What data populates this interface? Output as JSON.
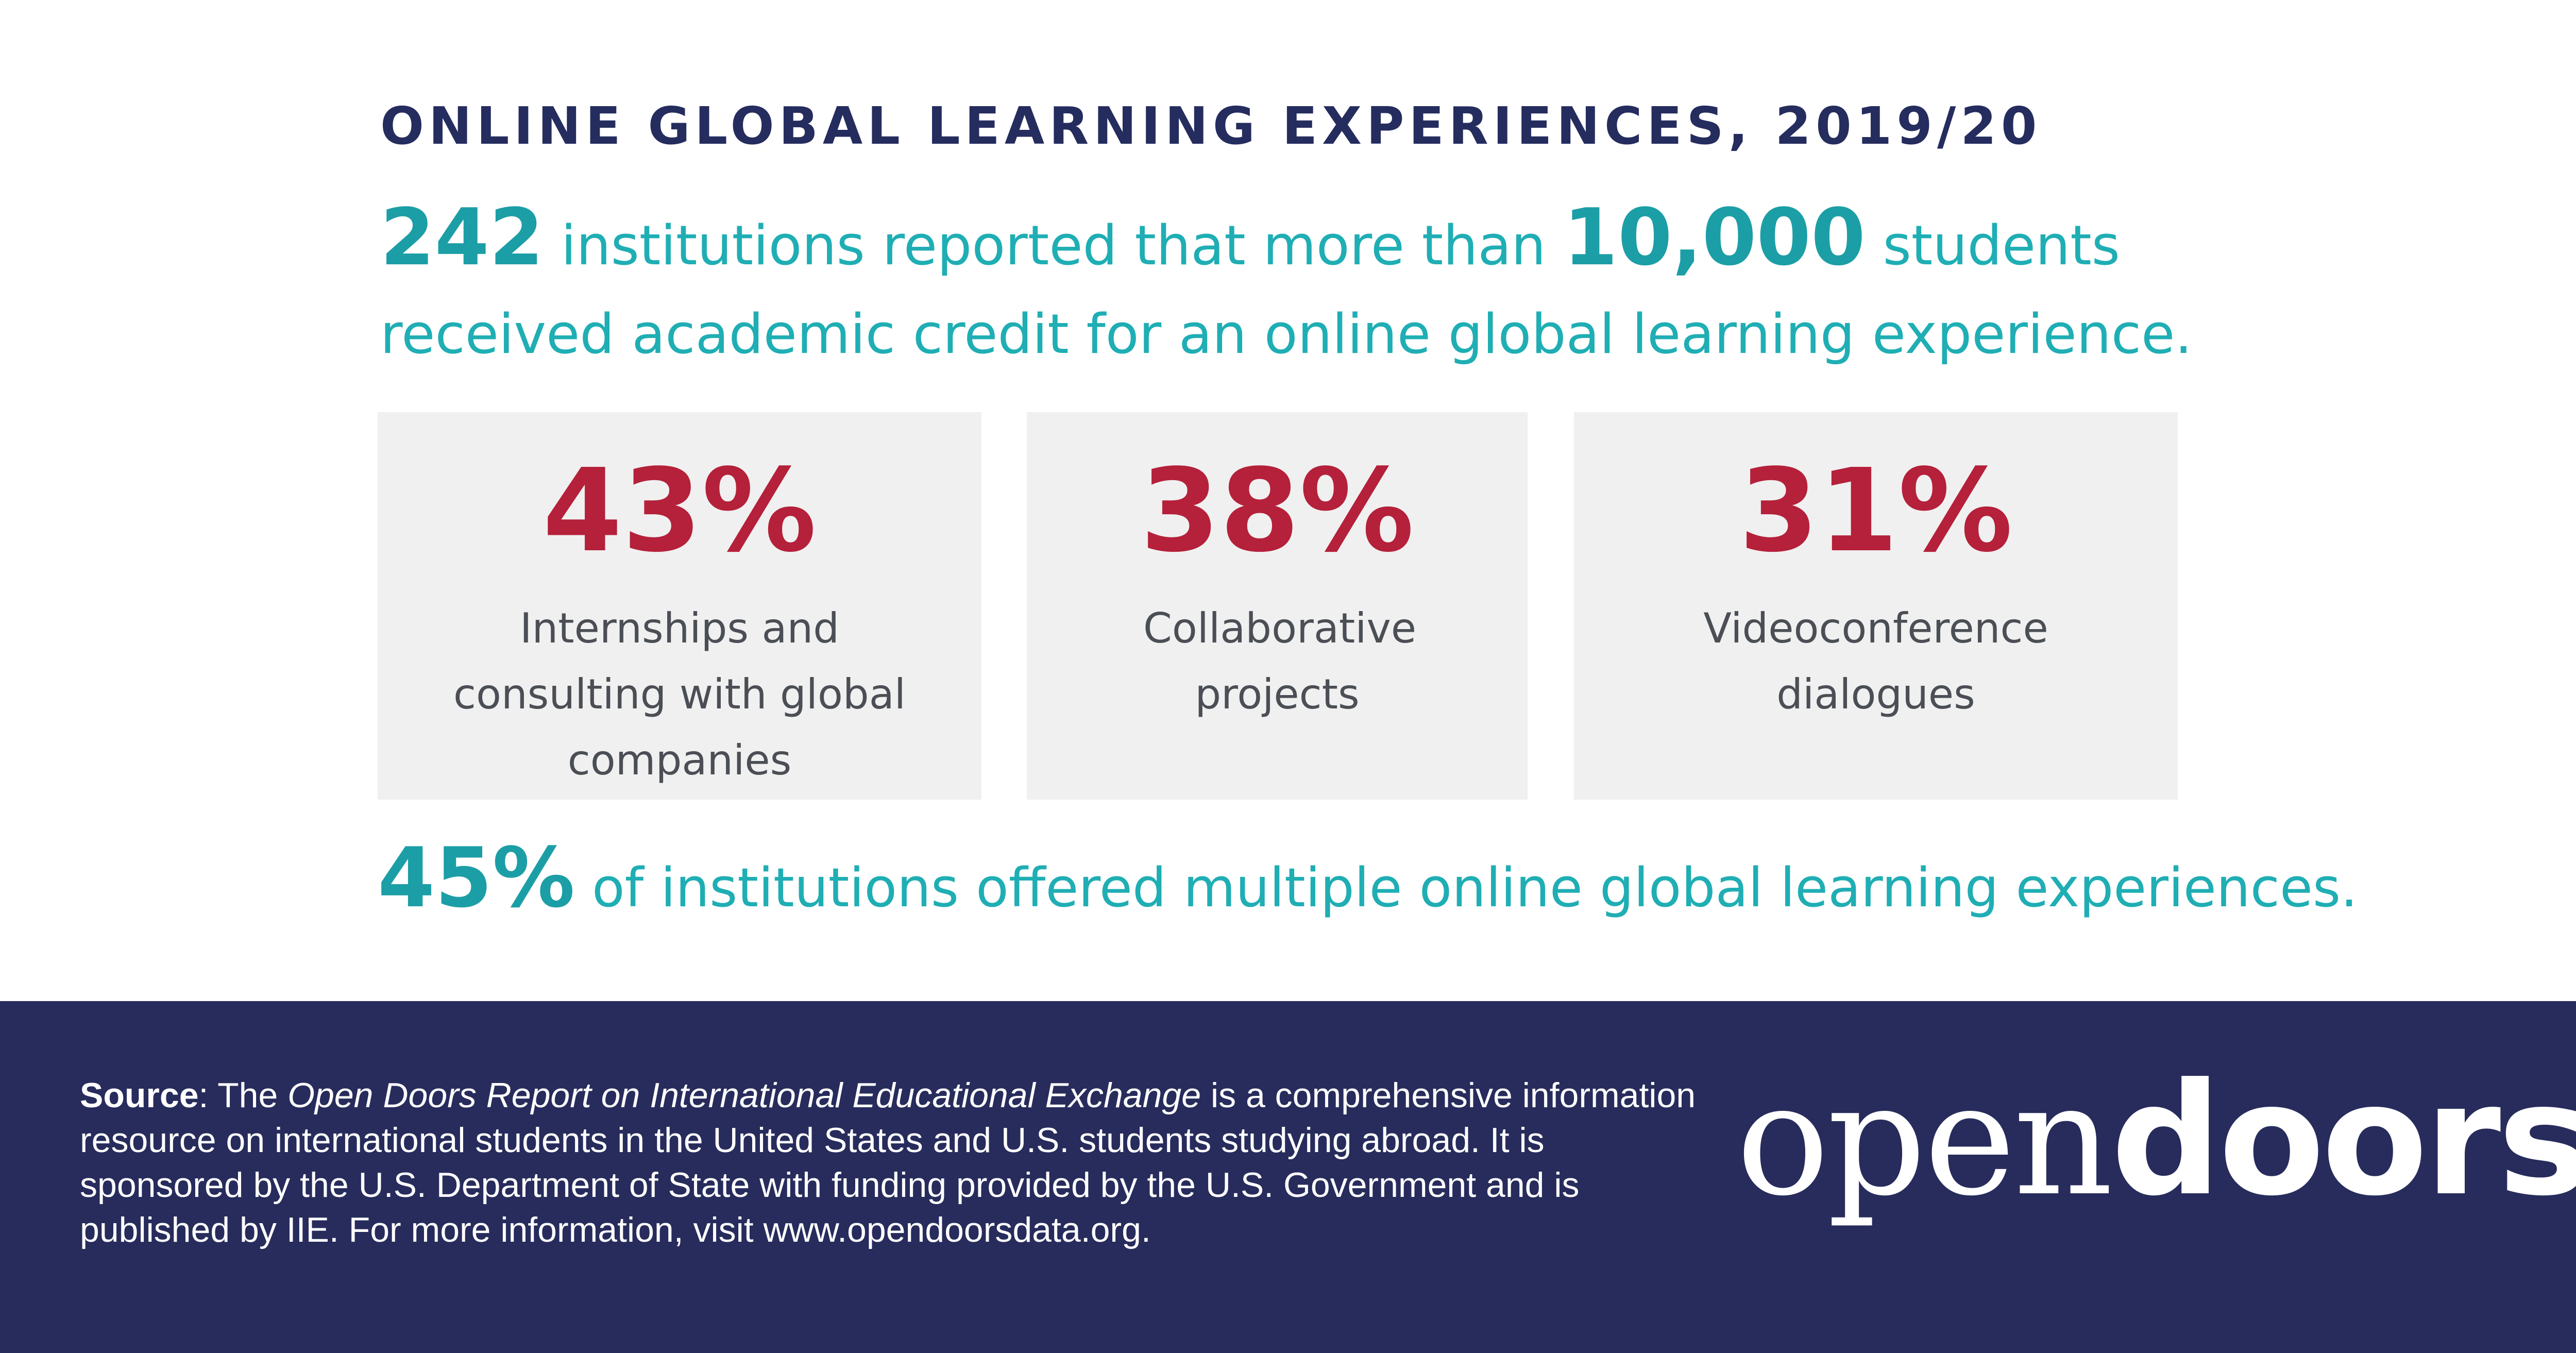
{
  "title": "ONLINE GLOBAL LEARNING EXPERIENCES, 2019/20",
  "headline": {
    "institutions_count": "242",
    "text_1": " institutions reported that more than ",
    "students_count": "10,000",
    "text_2": " students received academic credit for an online global learning experience."
  },
  "stats": [
    {
      "value": "43%",
      "label": "Internships and consulting with global companies"
    },
    {
      "value": "38%",
      "label": "Collaborative projects"
    },
    {
      "value": "31%",
      "label": "Videoconference dialogues"
    }
  ],
  "multiple": {
    "value": "45%",
    "text": " of institutions offered multiple online global learning experiences."
  },
  "footer": {
    "source_label": "Source",
    "source_colon": ": The ",
    "report_name": "Open Doors Report on International Educational Exchange",
    "source_text": " is a comprehensive information resource on international students in the United States and U.S. students studying abroad. It is sponsored by the U.S. Department of State with funding provided by the U.S. Government and is published by IIE. For more information, visit www.opendoorsdata.org.",
    "logo_part1": "open",
    "logo_part2": "doors",
    "logo_registered": "®"
  },
  "colors": {
    "title": "#252c5e",
    "teal": "#1faeb4",
    "red": "#b5203a",
    "box_bg": "#f0f0f0",
    "footer_bg": "#272c5c"
  }
}
